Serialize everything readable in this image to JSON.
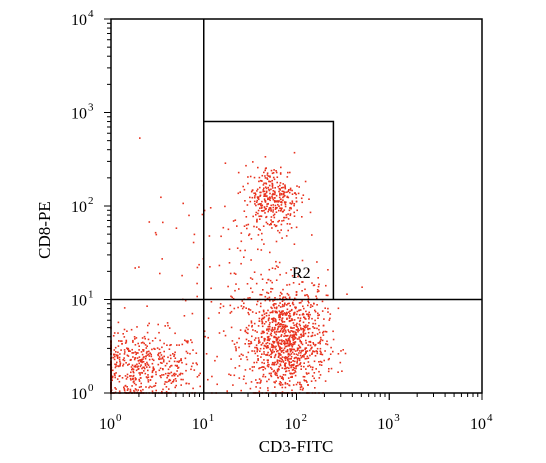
{
  "chart_data": {
    "type": "scatter",
    "title": "",
    "xlabel": "CD3-FITC",
    "ylabel": "CD8-PE",
    "xscale": "log",
    "yscale": "log",
    "xlim": [
      1,
      10000
    ],
    "ylim": [
      1,
      10000
    ],
    "x_ticks": [
      {
        "base": "10",
        "exp": "0",
        "value": 1
      },
      {
        "base": "10",
        "exp": "1",
        "value": 10
      },
      {
        "base": "10",
        "exp": "2",
        "value": 100
      },
      {
        "base": "10",
        "exp": "3",
        "value": 1000
      },
      {
        "base": "10",
        "exp": "4",
        "value": 10000
      }
    ],
    "y_ticks": [
      {
        "base": "10",
        "exp": "0",
        "value": 1
      },
      {
        "base": "10",
        "exp": "1",
        "value": 10
      },
      {
        "base": "10",
        "exp": "2",
        "value": 100
      },
      {
        "base": "10",
        "exp": "3",
        "value": 1000
      },
      {
        "base": "10",
        "exp": "4",
        "value": 10000
      }
    ],
    "point_color": "#e8321e",
    "quadrant_lines": {
      "x": 10,
      "y": 10
    },
    "gate": {
      "label": "R2",
      "x_range": [
        10,
        250
      ],
      "y_range": [
        10,
        800
      ]
    },
    "populations": [
      {
        "center": [
          2.0,
          1.8
        ],
        "spread_decades": [
          0.35,
          0.2
        ],
        "count": 600
      },
      {
        "center": [
          75,
          3.5
        ],
        "spread_decades": [
          0.22,
          0.3
        ],
        "count": 1100
      },
      {
        "center": [
          55,
          120
        ],
        "spread_decades": [
          0.15,
          0.18
        ],
        "count": 350
      },
      {
        "center": [
          20,
          20
        ],
        "spread_decades": [
          0.5,
          0.4
        ],
        "count": 120
      }
    ]
  }
}
